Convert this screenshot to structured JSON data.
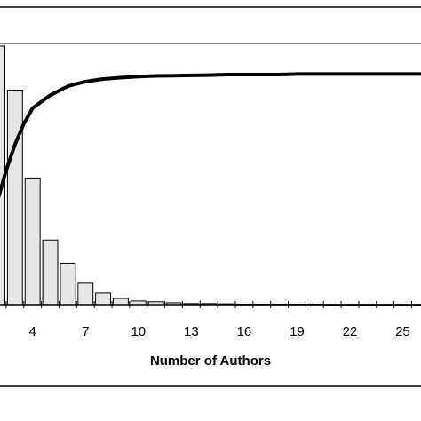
{
  "chart_data": {
    "type": "bar",
    "title": "",
    "xlabel": "Number of Authors",
    "ylabel": "",
    "x_tick_labels": [
      "4",
      "7",
      "10",
      "13",
      "16",
      "19",
      "22",
      "25"
    ],
    "xlim": [
      1.5,
      26.5
    ],
    "ylim": [
      0,
      100
    ],
    "grid": false,
    "legend": "none",
    "colors": {
      "bars_fill": "#e6e6e6",
      "bars_stroke": "#000000",
      "line": "#000000",
      "frame": "#000000"
    },
    "series": [
      {
        "type": "bar",
        "x": [
          2,
          3,
          4,
          5,
          6,
          7,
          8,
          9,
          10,
          11,
          12,
          13,
          14,
          15,
          16,
          17,
          18,
          19,
          20,
          21,
          22,
          23,
          24,
          25,
          26
        ],
        "values": [
          100,
          83,
          49,
          25,
          16,
          8.3,
          4.5,
          2.4,
          1.4,
          1.1,
          0.7,
          0.4,
          0.4,
          0.3,
          0.2,
          0.2,
          0.2,
          0.2,
          0.2,
          0.1,
          0.1,
          0.1,
          0.1,
          0.1,
          0.1
        ]
      },
      {
        "type": "line",
        "x": [
          2,
          2.5,
          3,
          3.5,
          4,
          5,
          6,
          7,
          8,
          9,
          10,
          11,
          12,
          13,
          14,
          15,
          16,
          17,
          18,
          19,
          20,
          21,
          22,
          23,
          24,
          25,
          26
        ],
        "values": [
          40,
          52,
          62,
          70,
          76,
          81,
          84.5,
          86.3,
          87.3,
          87.8,
          88.2,
          88.5,
          88.6,
          88.7,
          88.8,
          89,
          89,
          89,
          89,
          89.2,
          89.2,
          89.2,
          89.2,
          89.2,
          89.2,
          89.2,
          89.2
        ]
      }
    ]
  }
}
